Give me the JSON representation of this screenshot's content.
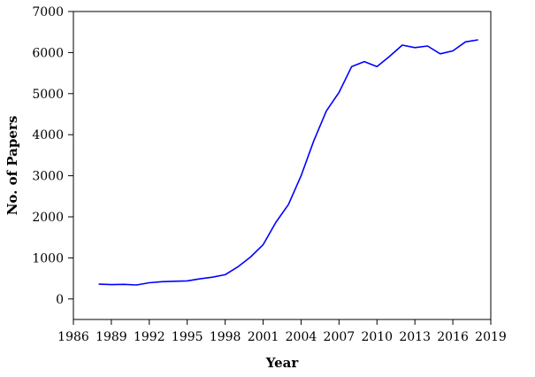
{
  "chart_data": {
    "type": "line",
    "title": "",
    "xlabel": "Year",
    "ylabel": "No. of Papers",
    "xlim": [
      1986,
      2019
    ],
    "ylim": [
      -500,
      7000
    ],
    "x_ticks": [
      1986,
      1989,
      1992,
      1995,
      1998,
      2001,
      2004,
      2007,
      2010,
      2013,
      2016,
      2019
    ],
    "y_ticks": [
      0,
      1000,
      2000,
      3000,
      4000,
      5000,
      6000,
      7000
    ],
    "grid": false,
    "legend": "none",
    "series": [
      {
        "color": "#0000ff",
        "x": [
          1988,
          1989,
          1990,
          1991,
          1992,
          1993,
          1994,
          1995,
          1996,
          1997,
          1998,
          1999,
          2000,
          2001,
          2002,
          2003,
          2004,
          2005,
          2006,
          2007,
          2008,
          2009,
          2010,
          2011,
          2012,
          2013,
          2014,
          2015,
          2016,
          2017,
          2018
        ],
        "y": [
          360,
          350,
          355,
          340,
          395,
          420,
          430,
          440,
          490,
          530,
          590,
          780,
          1020,
          1320,
          1860,
          2300,
          3000,
          3850,
          4580,
          5030,
          5660,
          5780,
          5660,
          5910,
          6180,
          6120,
          6160,
          5970,
          6040,
          6260,
          6310
        ]
      }
    ]
  }
}
